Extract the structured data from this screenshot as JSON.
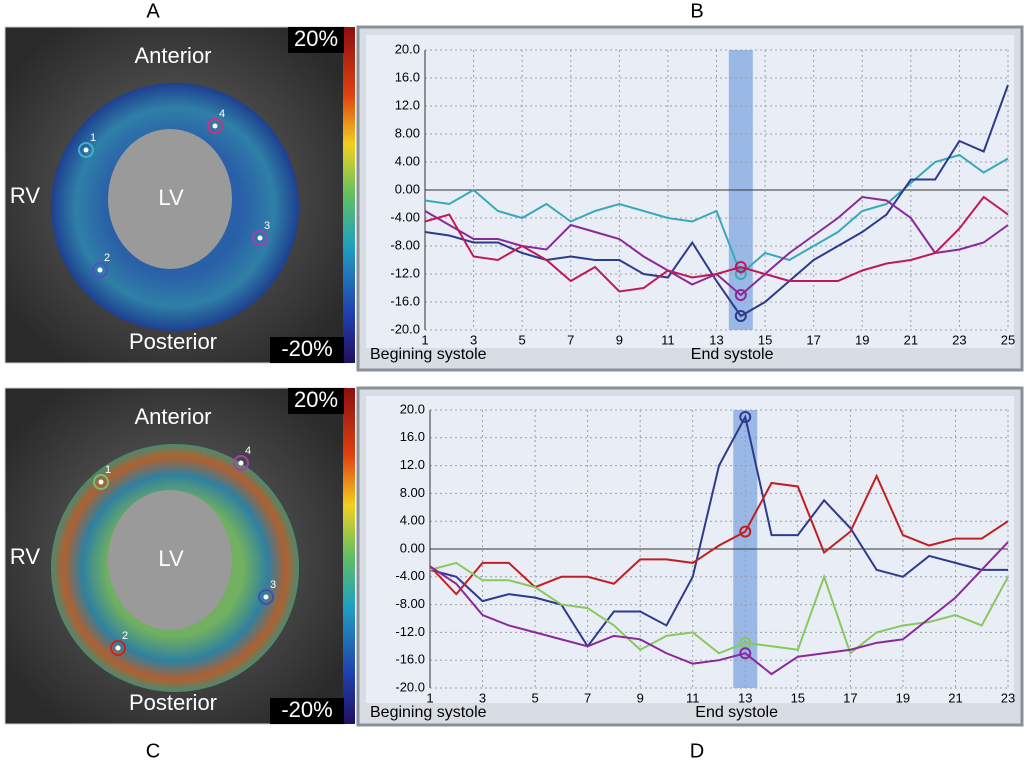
{
  "panel_labels": [
    "A",
    "B",
    "C",
    "D"
  ],
  "images": [
    {
      "anterior": "Anterior",
      "posterior": "Posterior",
      "rv": "RV",
      "lv": "LV",
      "scale_max": "20%",
      "scale_min": "-20%",
      "points": [
        "1",
        "2",
        "3",
        "4"
      ]
    },
    {
      "anterior": "Anterior",
      "posterior": "Posterior",
      "rv": "RV",
      "lv": "LV",
      "scale_max": "20%",
      "scale_min": "-20%",
      "points": [
        "1",
        "2",
        "3",
        "4"
      ]
    }
  ],
  "chart_data": [
    {
      "type": "line",
      "x": [
        1,
        2,
        3,
        4,
        5,
        6,
        7,
        8,
        9,
        10,
        11,
        12,
        13,
        14,
        15,
        16,
        17,
        18,
        19,
        20,
        21,
        22,
        23,
        24,
        25
      ],
      "xlim": [
        1,
        25
      ],
      "xticks": [
        1,
        3,
        5,
        7,
        9,
        11,
        13,
        15,
        17,
        19,
        21,
        23,
        25
      ],
      "ylim": [
        -20,
        20
      ],
      "yticks": [
        {
          "value": 20,
          "label": "20.0"
        },
        {
          "value": 16,
          "label": "16.0"
        },
        {
          "value": 12,
          "label": "12.0"
        },
        {
          "value": 8,
          "label": "8.00"
        },
        {
          "value": 4,
          "label": "4.00"
        },
        {
          "value": 0,
          "label": "0.00"
        },
        {
          "value": -4,
          "label": "-4.00"
        },
        {
          "value": -8,
          "label": "-8.00"
        },
        {
          "value": -12,
          "label": "-12.0"
        },
        {
          "value": -16,
          "label": "-16.0"
        },
        {
          "value": -20,
          "label": "-20.0"
        }
      ],
      "grid": true,
      "highlight_x": 14,
      "x_annotations": [
        "Begining systole",
        "End systole"
      ],
      "series": [
        {
          "color": "#3aa8ba",
          "values": [
            -1.5,
            -2,
            0,
            -3,
            -4,
            -2,
            -4.5,
            -3,
            -2,
            -3,
            -4,
            -4.5,
            -3,
            -12,
            -9,
            -10,
            -8,
            -6,
            -3,
            -2,
            1,
            4,
            5,
            2.5,
            4.5
          ]
        },
        {
          "color": "#2e3a8c",
          "values": [
            -6,
            -6.5,
            -7.5,
            -7.5,
            -9,
            -10,
            -9.5,
            -10,
            -10,
            -12,
            -12.5,
            -7.5,
            -13,
            -18,
            -16,
            -13,
            -10,
            -8,
            -6,
            -3.5,
            1.5,
            1.5,
            7,
            5.5,
            15
          ]
        },
        {
          "color": "#8a2a9a",
          "values": [
            -3,
            -5,
            -7,
            -7,
            -8,
            -8.5,
            -5,
            -6,
            -7,
            -9.5,
            -11.5,
            -13.5,
            -12,
            -15,
            -12,
            -9,
            -6.5,
            -4,
            -1,
            -1.5,
            -4,
            -9,
            -8.5,
            -7.5,
            -5
          ]
        },
        {
          "color": "#c0185a",
          "values": [
            -4.5,
            -3.5,
            -9.5,
            -10,
            -8,
            -10,
            -13,
            -11,
            -14.5,
            -14,
            -11.5,
            -12.5,
            -12,
            -11,
            -12,
            -13,
            -13,
            -13,
            -11.5,
            -10.5,
            -10,
            -9,
            -5.5,
            -1,
            -3.5
          ]
        }
      ]
    },
    {
      "type": "line",
      "x": [
        1,
        2,
        3,
        4,
        5,
        6,
        7,
        8,
        9,
        10,
        11,
        12,
        13,
        14,
        15,
        16,
        17,
        18,
        19,
        20,
        21,
        22,
        23
      ],
      "xlim": [
        1,
        23
      ],
      "xticks": [
        1,
        3,
        5,
        7,
        9,
        11,
        13,
        15,
        17,
        19,
        21,
        23
      ],
      "ylim": [
        -20,
        20
      ],
      "yticks": [
        {
          "value": 20,
          "label": "20.0"
        },
        {
          "value": 16,
          "label": "16.0"
        },
        {
          "value": 12,
          "label": "12.0"
        },
        {
          "value": 8,
          "label": "8.00"
        },
        {
          "value": 4,
          "label": "4.00"
        },
        {
          "value": 0,
          "label": "0.00"
        },
        {
          "value": -4,
          "label": "-4.00"
        },
        {
          "value": -8,
          "label": "-8.00"
        },
        {
          "value": -12,
          "label": "-12.0"
        },
        {
          "value": -16,
          "label": "-16.0"
        },
        {
          "value": -20,
          "label": "-20.0"
        }
      ],
      "grid": true,
      "highlight_x": 13,
      "x_annotations": [
        "Begining systole",
        "End systole"
      ],
      "series": [
        {
          "color": "#2e3a8c",
          "values": [
            -3,
            -4,
            -7.5,
            -6.5,
            -7,
            -8,
            -14,
            -9,
            -9,
            -11,
            -4,
            12,
            19,
            2,
            2,
            7,
            3,
            -3,
            -4,
            -1,
            -2,
            -3,
            -3
          ]
        },
        {
          "color": "#c02020",
          "values": [
            -2.5,
            -6.5,
            -2,
            -2,
            -5.5,
            -4,
            -4,
            -5,
            -1.5,
            -1.5,
            -2,
            0.5,
            2.5,
            9.5,
            9,
            -0.5,
            2.5,
            10.5,
            2,
            0.5,
            1.5,
            1.5,
            4
          ]
        },
        {
          "color": "#88c860",
          "values": [
            -3,
            -2,
            -4.5,
            -4.5,
            -5.5,
            -8,
            -8.5,
            -11,
            -14.5,
            -12.5,
            -12,
            -15,
            -13.5,
            -14,
            -14.5,
            -4,
            -15,
            -12,
            -11,
            -10.5,
            -9.5,
            -11,
            -4
          ]
        },
        {
          "color": "#8a2a9a",
          "values": [
            -2.5,
            -5,
            -9.5,
            -11,
            -12,
            -13,
            -14,
            -12.5,
            -13,
            -15,
            -16.5,
            -16,
            -15,
            -18,
            -15.5,
            -15,
            -14.5,
            -13.5,
            -13,
            -10,
            -7,
            -3,
            1
          ]
        }
      ]
    }
  ]
}
